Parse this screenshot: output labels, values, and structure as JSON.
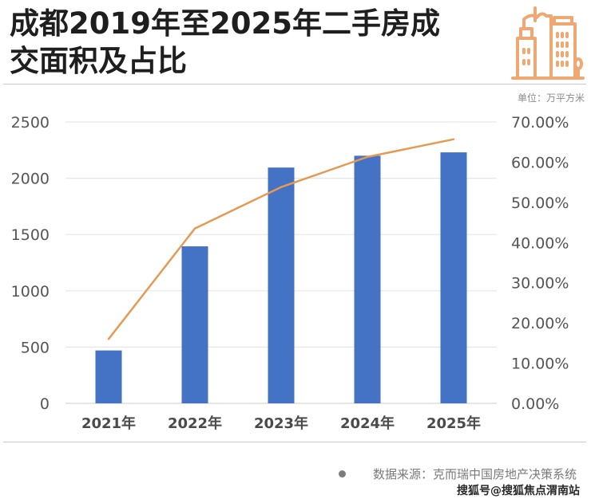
{
  "header": {
    "title_line1": "成都2019年至2025年二手房成",
    "title_line2": "交面积及占比",
    "logo_icon": "city-buildings-icon",
    "unit_label": "单位：万平方米"
  },
  "footer": {
    "source": "数据来源：克而瑞中国房地产决策系统",
    "credit": "搜狐号@搜狐焦点渭南站"
  },
  "colors": {
    "bar": "#4472c4",
    "line": "#e59a53",
    "logo": "#efa872",
    "grid": "#e6e6e6",
    "tick": "#555555"
  },
  "chart_data": {
    "type": "bar+line",
    "title": "成都2019年至2025年二手房成交面积及占比",
    "categories": [
      "2021年",
      "2022年",
      "2023年",
      "2024年",
      "2025年"
    ],
    "series": [
      {
        "name": "成交面积",
        "type": "bar",
        "axis": "left",
        "values": [
          470,
          1395,
          2095,
          2200,
          2230
        ]
      },
      {
        "name": "占比",
        "type": "line",
        "axis": "right",
        "values": [
          16.0,
          43.5,
          53.8,
          61.3,
          65.7
        ]
      }
    ],
    "y_left": {
      "range": [
        0,
        2500
      ],
      "ticks": [
        "0",
        "500",
        "1000",
        "1500",
        "2000",
        "2500"
      ],
      "label": "单位：万平方米"
    },
    "y_right": {
      "range": [
        0,
        70
      ],
      "ticks": [
        "0.00%",
        "10.00%",
        "20.00%",
        "30.00%",
        "40.00%",
        "50.00%",
        "60.00%",
        "70.00%"
      ]
    },
    "grid": true,
    "legend": "none"
  }
}
